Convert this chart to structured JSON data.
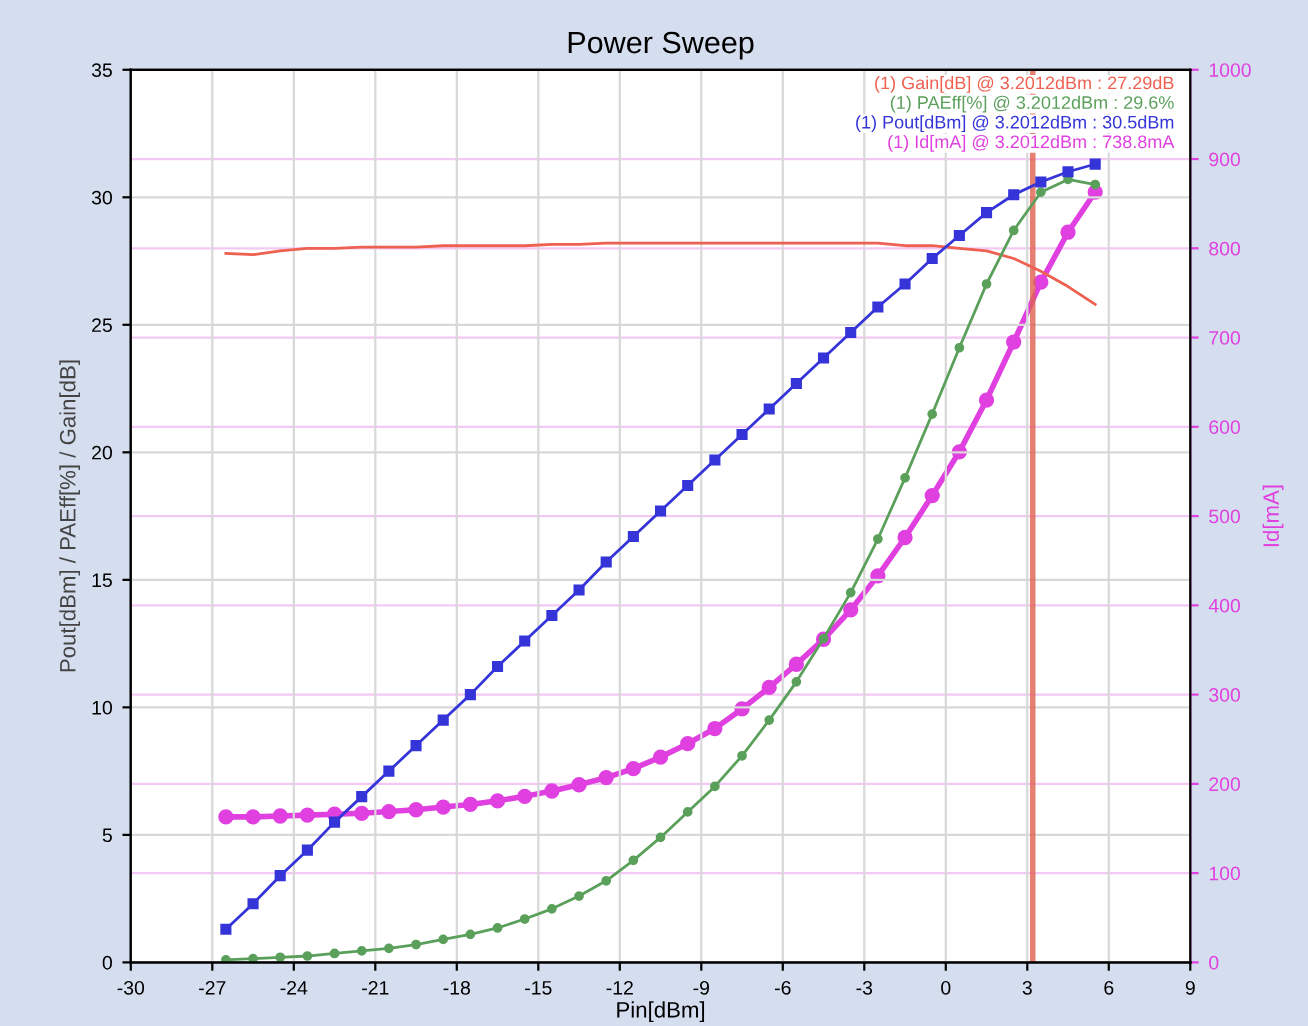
{
  "chart_data": {
    "type": "line",
    "title": "Power Sweep",
    "xlabel": "Pin[dBm]",
    "ylabel": "Pout[dBm] / PAEff[%] / Gain[dB]",
    "y2label": "Id[mA]",
    "x": [
      -26.5,
      -25.5,
      -24.5,
      -23.5,
      -22.5,
      -21.5,
      -20.5,
      -19.5,
      -18.5,
      -17.5,
      -16.5,
      -15.5,
      -14.5,
      -13.5,
      -12.5,
      -11.5,
      -10.5,
      -9.5,
      -8.5,
      -7.5,
      -6.5,
      -5.5,
      -4.5,
      -3.5,
      -2.5,
      -1.5,
      -0.5,
      0.5,
      1.5,
      2.5,
      3.5,
      4.5,
      5.5
    ],
    "series": [
      {
        "color": "#ee6050",
        "marker": "none",
        "values": [
          27.8,
          27.75,
          27.9,
          28.0,
          28.0,
          28.05,
          28.05,
          28.05,
          28.1,
          28.1,
          28.1,
          28.1,
          28.15,
          28.15,
          28.2,
          28.2,
          28.2,
          28.2,
          28.2,
          28.2,
          28.2,
          28.2,
          28.2,
          28.2,
          28.2,
          28.1,
          28.1,
          28.0,
          27.9,
          27.6,
          27.1,
          26.5,
          25.8
        ]
      },
      {
        "color": "#5aa05a",
        "marker": "circle",
        "values": [
          0.1,
          0.15,
          0.2,
          0.25,
          0.35,
          0.45,
          0.55,
          0.7,
          0.9,
          1.1,
          1.35,
          1.7,
          2.1,
          2.6,
          3.2,
          4.0,
          4.9,
          5.9,
          6.9,
          8.1,
          9.5,
          11.0,
          12.7,
          14.5,
          16.6,
          19.0,
          21.5,
          24.1,
          26.6,
          28.7,
          30.2,
          30.7,
          30.5
        ]
      },
      {
        "color": "#3434d8",
        "marker": "square",
        "values": [
          1.3,
          2.3,
          3.4,
          4.4,
          5.5,
          6.5,
          7.5,
          8.5,
          9.5,
          10.5,
          11.6,
          12.6,
          13.6,
          14.6,
          15.7,
          16.7,
          17.7,
          18.7,
          19.7,
          20.7,
          21.7,
          22.7,
          23.7,
          24.7,
          25.7,
          26.6,
          27.6,
          28.5,
          29.4,
          30.1,
          30.6,
          31.0,
          31.3
        ]
      },
      {
        "color": "#e040e0",
        "marker": "circle",
        "axis": "y2",
        "values": [
          163,
          163,
          164,
          165,
          166,
          167,
          169,
          171,
          174,
          177,
          181,
          186,
          192,
          199,
          207,
          217,
          230,
          245,
          262,
          284,
          308,
          334,
          362,
          395,
          433,
          476,
          523,
          572,
          630,
          695,
          762,
          818,
          863
        ]
      }
    ],
    "annotations": [
      "(1) Gain[dB] @ 3.2012dBm : 27.29dB",
      "(1) PAEff[%] @ 3.2012dBm : 29.6%",
      "(1) Pout[dBm] @ 3.2012dBm : 30.5dBm",
      "(1) Id[mA] @ 3.2012dBm : 738.8mA"
    ],
    "ref_lines": [
      {
        "axis": "x",
        "value": 3.2012,
        "color": "#e06050"
      }
    ],
    "xlim": [
      -30,
      9
    ],
    "xticks": [
      -30,
      -27,
      -24,
      -21,
      -18,
      -15,
      -12,
      -9,
      -6,
      -3,
      0,
      3,
      6,
      9
    ],
    "ylim": [
      0,
      35
    ],
    "yticks": [
      0,
      5,
      10,
      15,
      20,
      25,
      30,
      35
    ],
    "y2lim": [
      0,
      1000
    ],
    "y2ticks": [
      0,
      100,
      200,
      300,
      400,
      500,
      600,
      700,
      800,
      900,
      1000
    ],
    "grid": true,
    "legend": false
  }
}
